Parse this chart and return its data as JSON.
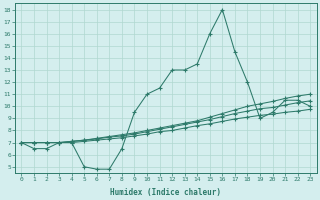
{
  "xlabel": "Humidex (Indice chaleur)",
  "bg_color": "#d4eeee",
  "grid_color": "#b0d8d0",
  "line_color": "#2d7a6a",
  "xlim": [
    -0.5,
    23.5
  ],
  "ylim": [
    4.5,
    18.5
  ],
  "xticks": [
    0,
    1,
    2,
    3,
    4,
    5,
    6,
    7,
    8,
    9,
    10,
    11,
    12,
    13,
    14,
    15,
    16,
    17,
    18,
    19,
    20,
    21,
    22,
    23
  ],
  "yticks": [
    5,
    6,
    7,
    8,
    9,
    10,
    11,
    12,
    13,
    14,
    15,
    16,
    17,
    18
  ],
  "series": [
    {
      "x": [
        0,
        1,
        2,
        3,
        4,
        5,
        6,
        7,
        8,
        9,
        10,
        11,
        12,
        13,
        14,
        15,
        16,
        17,
        18,
        19,
        20,
        21,
        22,
        23
      ],
      "y": [
        7,
        6.5,
        6.5,
        7,
        7,
        5,
        4.8,
        4.8,
        6.5,
        9.5,
        11,
        11.5,
        13,
        13,
        13.5,
        16,
        18,
        14.5,
        12,
        9,
        9.5,
        10.5,
        10.5,
        10
      ]
    },
    {
      "x": [
        0,
        1,
        2,
        3,
        4,
        5,
        6,
        7,
        8,
        9,
        10,
        11,
        12,
        13,
        14,
        15,
        16,
        17,
        18,
        19,
        20,
        21,
        22,
        23
      ],
      "y": [
        7,
        7,
        7,
        7,
        7.1,
        7.2,
        7.35,
        7.5,
        7.65,
        7.8,
        8.0,
        8.2,
        8.4,
        8.6,
        8.8,
        9.1,
        9.4,
        9.7,
        10.0,
        10.2,
        10.4,
        10.65,
        10.85,
        11.0
      ]
    },
    {
      "x": [
        0,
        1,
        2,
        3,
        4,
        5,
        6,
        7,
        8,
        9,
        10,
        11,
        12,
        13,
        14,
        15,
        16,
        17,
        18,
        19,
        20,
        21,
        22,
        23
      ],
      "y": [
        7,
        7,
        7,
        7,
        7.1,
        7.2,
        7.3,
        7.45,
        7.55,
        7.7,
        7.9,
        8.1,
        8.3,
        8.5,
        8.7,
        8.9,
        9.15,
        9.4,
        9.6,
        9.8,
        9.9,
        10.1,
        10.3,
        10.45
      ]
    },
    {
      "x": [
        0,
        1,
        2,
        3,
        4,
        5,
        6,
        7,
        8,
        9,
        10,
        11,
        12,
        13,
        14,
        15,
        16,
        17,
        18,
        19,
        20,
        21,
        22,
        23
      ],
      "y": [
        7,
        7,
        7,
        7,
        7,
        7.1,
        7.2,
        7.3,
        7.4,
        7.55,
        7.7,
        7.9,
        8.0,
        8.2,
        8.4,
        8.55,
        8.75,
        8.95,
        9.1,
        9.25,
        9.35,
        9.5,
        9.6,
        9.75
      ]
    }
  ]
}
